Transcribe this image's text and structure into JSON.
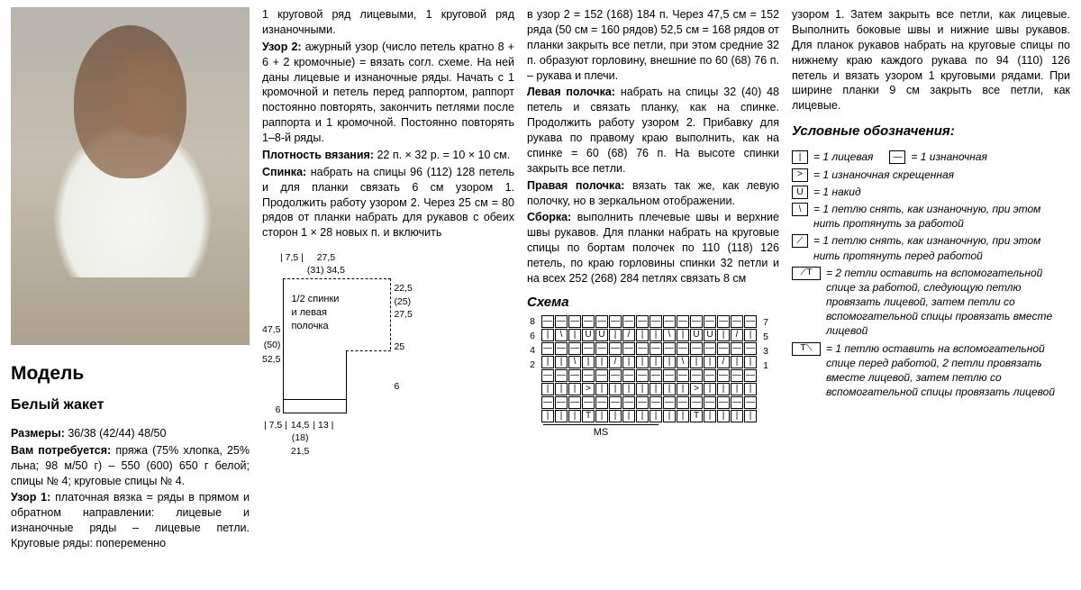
{
  "col1": {
    "section_title": "Модель",
    "name": "Белый жакет",
    "sizes_label": "Размеры:",
    "sizes": "36/38 (42/44) 48/50",
    "need_label": "Вам потребуется:",
    "need": "пряжа (75% хлопка, 25% льна; 98 м/50 г) – 550 (600) 650 г белой; спицы № 4; круговые спицы № 4.",
    "p1_label": "Узор 1:",
    "p1": "платочная вязка = ряды в пря­мом и обратном направлении: лице­вые и изнаночные ряды – лицевые петли. Круговые ряды: попеременно"
  },
  "col2": {
    "t1": "1 круговой ряд лицевыми, 1 круговой ряд изнаночными.",
    "p2_label": "Узор 2:",
    "p2": "ажурный узор (число петель кратно 8 + 6 + 2 кромочные) = вязать согл. схеме. На ней даны лицевые и изнаночные ряды. Начать с 1 кромоч­ной и петель перед раппортом, рап­порт постоянно повторять, закончить петлями после раппорта и 1 кромоч­ной. Постоянно повторять 1–8-й ряды.",
    "g_label": "Плотность вязания:",
    "g": "22 п. × 32 р. = 10 × 10 см.",
    "back_label": "Спинка:",
    "back": "набрать на спицы 96 (112) 128 петель и для планки связать 6 см узором 1. Продолжить работу узо­ром 2. Через 25 см = 80 рядов от планки набрать для рукавов с обеих сторон 1 × 28 новых п. и включить",
    "schematic": {
      "top": [
        "| 7,5 |",
        "27,5",
        "(31) 34,5"
      ],
      "left_nums": [
        "47,5",
        "(50)",
        "52,5"
      ],
      "center": "1/2 спинки\nи левая\nполочка",
      "right": [
        "22,5",
        "(25)",
        "27,5",
        "",
        "25",
        "",
        "",
        "6"
      ],
      "bottom": [
        "| 7,5 |",
        "14,5",
        "(18)",
        "21,5",
        "| 13 |"
      ],
      "left_bottom": "6"
    }
  },
  "col3": {
    "t1": "в узор 2 = 152 (168) 184 п. Через 47,5 см = 152 ряда (50 см = 160 рядов) 52,5 см = 168 рядов от планки закрыть все петли, при этом средние 32 п. образуют горловину, внешние по 60 (68) 76 п. – рукава и плечи.",
    "lf_label": "Левая полочка:",
    "lf": "набрать на спицы 32 (40) 48 петель и связать планку, как на спинке. Продолжить работу узором 2. Прибавку для рукава по правому краю выполнить, как на спинке = 60 (68) 76 п. На высоте спинки закрыть все петли.",
    "rf_label": "Правая полочка:",
    "rf": "вязать так же, как левую полочку, но в зеркальном ото­бражении.",
    "as_label": "Сборка:",
    "as": "выполнить плечевые швы и верхние швы рукавов. Для планки набрать на круговые спицы по бортам полочек по 110 (118) 126 петель, по краю горловины спинки 32 петли и на всех 252 (268) 284 петлях связать 8 см",
    "chart_title": "Схема",
    "chart": {
      "left_nums": [
        "8",
        "6",
        "4",
        "2"
      ],
      "right_nums": [
        "7",
        "5",
        "3",
        "1"
      ],
      "rows": [
        [
          "—",
          "—",
          "—",
          "—",
          "—",
          "—",
          "—",
          "—",
          "—",
          "—",
          "—",
          "—",
          "—",
          "—",
          "—",
          "—"
        ],
        [
          "|",
          "\\",
          "|",
          "U",
          "U",
          "|",
          "/",
          "|",
          "|",
          "\\",
          "|",
          "U",
          "U",
          "|",
          "/",
          "|"
        ],
        [
          "—",
          "—",
          "—",
          "—",
          "—",
          "—",
          "—",
          "—",
          "—",
          "—",
          "—",
          "—",
          "—",
          "—",
          "—",
          "—"
        ],
        [
          "|",
          "|",
          "\\",
          "|",
          "|",
          "/",
          "|",
          "|",
          "|",
          "|",
          "\\",
          "|",
          "|",
          "/",
          "|",
          "|"
        ],
        [
          "—",
          "—",
          "—",
          "—",
          "—",
          "—",
          "—",
          "—",
          "—",
          "—",
          "—",
          "—",
          "—",
          "—",
          "—",
          "—"
        ],
        [
          "|",
          "|",
          "|",
          ">",
          "|",
          "|",
          "|",
          "|",
          "|",
          "|",
          "|",
          ">",
          "|",
          "|",
          "|",
          "|"
        ],
        [
          "—",
          "—",
          "—",
          "—",
          "—",
          "—",
          "—",
          "—",
          "—",
          "—",
          "—",
          "—",
          "—",
          "—",
          "—",
          "—"
        ],
        [
          "|",
          "|",
          "|",
          "T",
          "|",
          "|",
          "|",
          "|",
          "|",
          "|",
          "|",
          "T",
          "|",
          "|",
          "|",
          "|"
        ]
      ],
      "ms": "MS"
    }
  },
  "col4": {
    "t1": "узором 1. Затем закрыть все петли, как лицевые. Выполнить боковые швы и нижние швы рукавов. Для планок рукавов набрать на круговые спицы по нижнему краю каждого рукава по 94 (110) 126 петель и вязать узо­ром 1 круговыми рядами. При ширине планки 9 см закрыть все петли, как лицевые.",
    "legend_title": "Условные обозначения:",
    "l1a_sym": "|",
    "l1a": "= 1 лицевая",
    "l1b_sym": "—",
    "l1b": "= 1 изнаночная",
    "l2_sym": ">",
    "l2": "= 1 изнаночная скрещенная",
    "l3_sym": "U",
    "l3": "= 1 накид",
    "l4_sym": "\\",
    "l4": "= 1 петлю снять, как изнаночную, при этом нить протянуть за работой",
    "l5_sym": "⟋",
    "l5": "= 1 петлю снять, как изнаночную, при этом нить протянуть перед работой",
    "l6_sym": "⟋T",
    "l6": "= 2 петли оставить на вспомогательной спице за работой, следующую петлю провязать лицевой, затем петли со вспомогательной спицы провязать вместе лицевой",
    "l7_sym": "T⟍",
    "l7": "= 1 петлю оставить на вспомогательной спице перед работой, 2 петли провязать вместе лицевой, затем петлю со вспомогательной спицы провязать лицевой"
  }
}
